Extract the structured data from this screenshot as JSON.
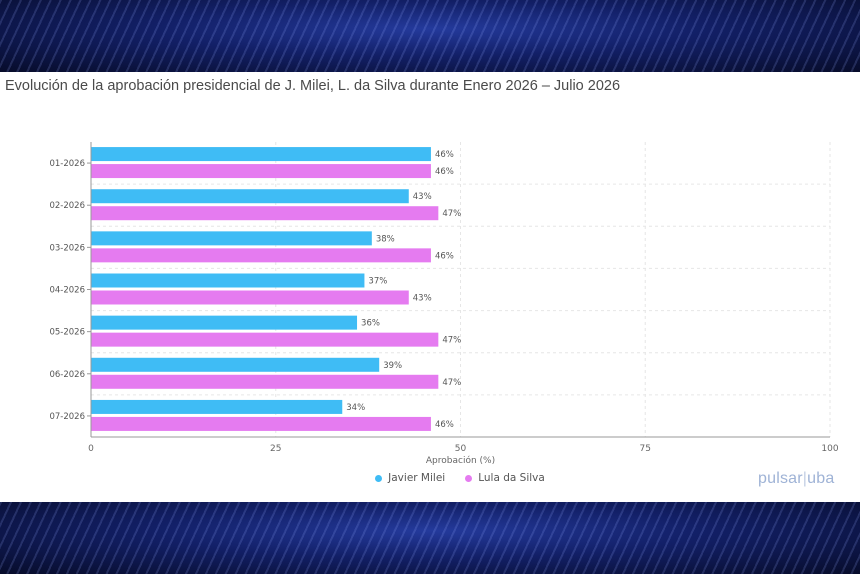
{
  "chart_data": {
    "type": "bar",
    "orientation": "horizontal",
    "title": "Evolución de la aprobación presidencial de J. Milei, L. da Silva durante Enero 2026 – Julio 2026",
    "xlabel": "Aprobación (%)",
    "ylabel": "",
    "xlim": [
      0,
      100
    ],
    "xticks": [
      0,
      25,
      50,
      75,
      100
    ],
    "categories": [
      "01-2026",
      "02-2026",
      "03-2026",
      "04-2026",
      "05-2026",
      "06-2026",
      "07-2026"
    ],
    "series": [
      {
        "name": "Javier Milei",
        "color": "#3fbcf5",
        "values": [
          46,
          43,
          38,
          37,
          36,
          39,
          34
        ]
      },
      {
        "name": "Lula da Silva",
        "color": "#e57bf0",
        "values": [
          46,
          47,
          46,
          43,
          47,
          47,
          46
        ]
      }
    ],
    "value_suffix": "%",
    "grid": true,
    "legend": "bottom"
  },
  "branding": {
    "left": "pulsar",
    "separator": "|",
    "right": "uba"
  }
}
